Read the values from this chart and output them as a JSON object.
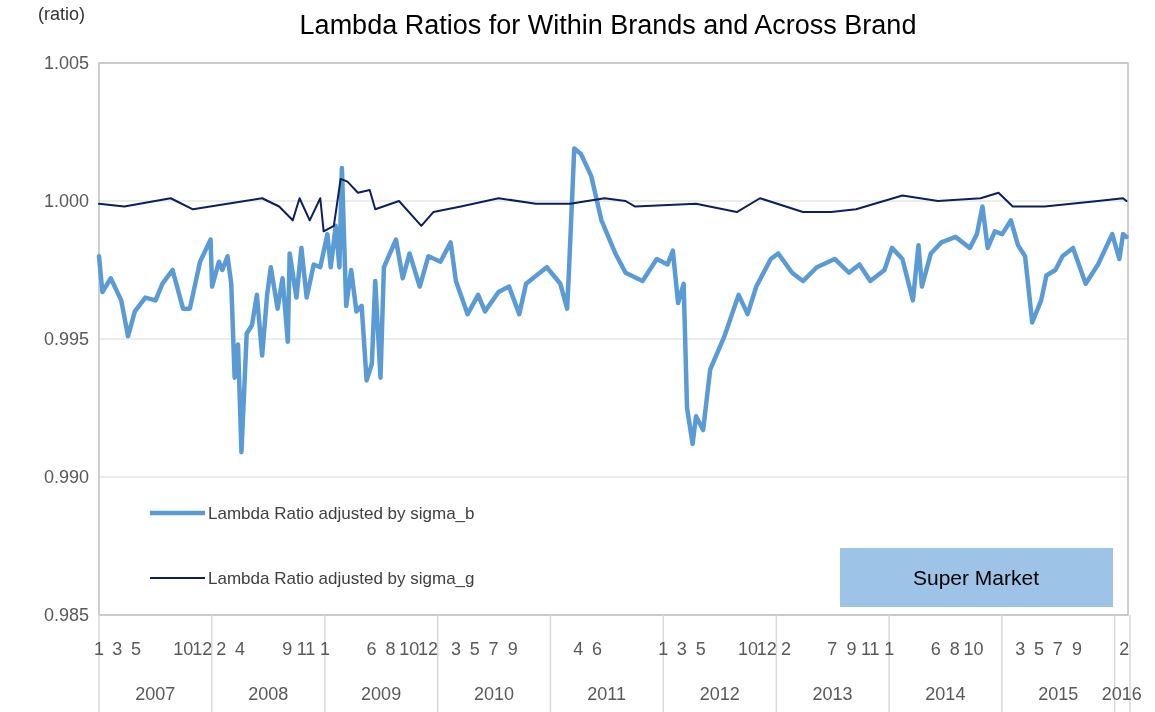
{
  "chart_data": {
    "type": "line",
    "title": "Lambda Ratios for Within Brands and Across Brand",
    "ylabel": "(ratio)",
    "xlim": [
      "2007-01-01",
      "2016-02-13"
    ],
    "xticks": [
      {
        "value": "2007-01",
        "label": "1"
      },
      {
        "value": "2007-03",
        "label": "3"
      },
      {
        "value": "2007-05",
        "label": "5"
      },
      {
        "value": "2007-10",
        "label": "10"
      },
      {
        "value": "2007-12",
        "label": "12"
      },
      {
        "value": "2008-02",
        "label": "2"
      },
      {
        "value": "2008-04",
        "label": "4"
      },
      {
        "value": "2008-09",
        "label": "9"
      },
      {
        "value": "2008-11",
        "label": "11"
      },
      {
        "value": "2009-01",
        "label": "1"
      },
      {
        "value": "2009-06",
        "label": "6"
      },
      {
        "value": "2009-08",
        "label": "8"
      },
      {
        "value": "2009-10",
        "label": "10"
      },
      {
        "value": "2009-12",
        "label": "12"
      },
      {
        "value": "2010-03",
        "label": "3"
      },
      {
        "value": "2010-05",
        "label": "5"
      },
      {
        "value": "2010-07",
        "label": "7"
      },
      {
        "value": "2010-09",
        "label": "9"
      },
      {
        "value": "2011-04",
        "label": "4"
      },
      {
        "value": "2011-06",
        "label": "6"
      },
      {
        "value": "2012-01",
        "label": "1"
      },
      {
        "value": "2012-03",
        "label": "3"
      },
      {
        "value": "2012-05",
        "label": "5"
      },
      {
        "value": "2012-10",
        "label": "10"
      },
      {
        "value": "2012-12",
        "label": "12"
      },
      {
        "value": "2013-02",
        "label": "2"
      },
      {
        "value": "2013-07",
        "label": "7"
      },
      {
        "value": "2013-09",
        "label": "9"
      },
      {
        "value": "2013-11",
        "label": "11"
      },
      {
        "value": "2014-01",
        "label": "1"
      },
      {
        "value": "2014-06",
        "label": "6"
      },
      {
        "value": "2014-08",
        "label": "8"
      },
      {
        "value": "2014-10",
        "label": "10"
      },
      {
        "value": "2015-03",
        "label": "3"
      },
      {
        "value": "2015-05",
        "label": "5"
      },
      {
        "value": "2015-07",
        "label": "7"
      },
      {
        "value": "2015-09",
        "label": "9"
      },
      {
        "value": "2016-02",
        "label": "2"
      }
    ],
    "x2lim": [
      "2007-01-01",
      "2016-02-13"
    ],
    "x2ticks": [
      {
        "value": "2007-07-02",
        "label": "2007"
      },
      {
        "value": "2008-07-02",
        "label": "2008"
      },
      {
        "value": "2009-07-02",
        "label": "2009"
      },
      {
        "value": "2010-07-02",
        "label": "2010"
      },
      {
        "value": "2011-07-02",
        "label": "2011"
      },
      {
        "value": "2012-07-02",
        "label": "2012"
      },
      {
        "value": "2013-07-02",
        "label": "2013"
      },
      {
        "value": "2014-07-02",
        "label": "2014"
      },
      {
        "value": "2015-07-02",
        "label": "2015"
      },
      {
        "value": "2016-01-24",
        "label": "2016"
      }
    ],
    "ylim": [
      0.985,
      1.005
    ],
    "yticks": [
      {
        "value": 0.985,
        "label": "0.985"
      },
      {
        "value": 0.99,
        "label": "0.990"
      },
      {
        "value": 0.995,
        "label": "0.995"
      },
      {
        "value": 1,
        "label": "1.000"
      },
      {
        "value": 1.005,
        "label": "1.005"
      }
    ],
    "grid": "y",
    "legend": "bottom left",
    "marker": "none",
    "line_style": "solid",
    "annotations": [
      "Super Market"
    ],
    "series": [
      {
        "name": "Lambda Ratio adjusted by sigma_b",
        "color": "#5b9bd5",
        "x": [
          "2007-01-01",
          "2007-01-12",
          "2007-02-08",
          "2007-03-14",
          "2007-04-05",
          "2007-04-27",
          "2007-05-31",
          "2007-07-03",
          "2007-07-25",
          "2007-08-27",
          "2007-09-30",
          "2007-10-22",
          "2007-11-24",
          "2007-12-28",
          "2008-01-02",
          "2008-01-24",
          "2008-02-04",
          "2008-02-21",
          "2008-03-04",
          "2008-03-15",
          "2008-03-26",
          "2008-04-06",
          "2008-04-23",
          "2008-05-10",
          "2008-05-26",
          "2008-06-12",
          "2008-06-28",
          "2008-07-10",
          "2008-08-01",
          "2008-08-17",
          "2008-09-03",
          "2008-09-09",
          "2008-10-01",
          "2008-10-17",
          "2008-11-03",
          "2008-11-26",
          "2008-12-17",
          "2009-01-09",
          "2009-01-20",
          "2009-02-05",
          "2009-02-17",
          "2009-02-25",
          "2009-03-11",
          "2009-03-27",
          "2009-04-13",
          "2009-04-30",
          "2009-05-16",
          "2009-06-02",
          "2009-06-13",
          "2009-06-30",
          "2009-07-11",
          "2009-08-19",
          "2009-09-10",
          "2009-10-02",
          "2009-11-04",
          "2009-12-02",
          "2010-01-10",
          "2010-02-12",
          "2010-03-01",
          "2010-04-08",
          "2010-05-12",
          "2010-06-03",
          "2010-07-17",
          "2010-08-20",
          "2010-09-22",
          "2010-10-14",
          "2010-12-20",
          "2011-02-02",
          "2011-02-24",
          "2011-03-02",
          "2011-03-19",
          "2011-04-10",
          "2011-05-13",
          "2011-06-15",
          "2011-07-30",
          "2011-09-01",
          "2011-10-26",
          "2011-12-11",
          "2012-01-15",
          "2012-02-01",
          "2012-02-18",
          "2012-03-07",
          "2012-03-18",
          "2012-04-05",
          "2012-04-16",
          "2012-05-09",
          "2012-06-01",
          "2012-06-24",
          "2012-07-17",
          "2012-09-01",
          "2012-09-30",
          "2012-10-28",
          "2012-12-14",
          "2013-01-07",
          "2013-02-21",
          "2013-03-28",
          "2013-05-12",
          "2013-07-09",
          "2013-08-24",
          "2013-09-27",
          "2013-11-01",
          "2013-12-17",
          "2014-01-10",
          "2014-02-13",
          "2014-03-19",
          "2014-04-06",
          "2014-04-17",
          "2014-05-16",
          "2014-06-19",
          "2014-08-04",
          "2014-09-19",
          "2014-10-12",
          "2014-10-30",
          "2014-11-16",
          "2014-12-09",
          "2015-01-02",
          "2015-01-30",
          "2015-02-22",
          "2015-03-17",
          "2015-04-09",
          "2015-05-08",
          "2015-05-25",
          "2015-06-23",
          "2015-07-16",
          "2015-08-19",
          "2015-09-29",
          "2015-11-08",
          "2015-12-24",
          "2016-01-16",
          "2016-01-28",
          "2016-02-08"
        ],
        "values": [
          0.998,
          0.9967,
          0.9972,
          0.9964,
          0.9951,
          0.996,
          0.9965,
          0.9964,
          0.997,
          0.9975,
          0.9961,
          0.9961,
          0.9978,
          0.9986,
          0.9969,
          0.9978,
          0.9975,
          0.998,
          0.997,
          0.9936,
          0.9948,
          0.9909,
          0.9952,
          0.9955,
          0.9966,
          0.9944,
          0.9966,
          0.9976,
          0.9961,
          0.9972,
          0.9949,
          0.9981,
          0.9965,
          0.9983,
          0.9965,
          0.9977,
          0.9976,
          0.9988,
          0.9976,
          0.9991,
          0.9976,
          1.0012,
          0.9962,
          0.9975,
          0.996,
          0.9962,
          0.9935,
          0.9941,
          0.9971,
          0.9936,
          0.9976,
          0.9986,
          0.9972,
          0.9981,
          0.9969,
          0.998,
          0.9978,
          0.9985,
          0.9971,
          0.9959,
          0.9966,
          0.996,
          0.9967,
          0.9969,
          0.9959,
          0.997,
          0.9976,
          0.997,
          0.9961,
          0.9975,
          1.0019,
          1.0017,
          1.0009,
          0.9993,
          0.9981,
          0.9974,
          0.9971,
          0.9979,
          0.9977,
          0.9982,
          0.9963,
          0.997,
          0.9925,
          0.9912,
          0.9922,
          0.9917,
          0.9939,
          0.9945,
          0.9951,
          0.9966,
          0.9959,
          0.9969,
          0.9979,
          0.9981,
          0.9974,
          0.9971,
          0.9976,
          0.9979,
          0.9974,
          0.9977,
          0.9971,
          0.9975,
          0.9983,
          0.9979,
          0.9964,
          0.9984,
          0.9969,
          0.9981,
          0.9985,
          0.9987,
          0.9983,
          0.9988,
          0.9998,
          0.9983,
          0.9989,
          0.9988,
          0.9993,
          0.9984,
          0.998,
          0.9956,
          0.9964,
          0.9973,
          0.9975,
          0.998,
          0.9983,
          0.997,
          0.9977,
          0.9988,
          0.9979,
          0.9988,
          0.9987
        ]
      },
      {
        "name": "Lambda Ratio adjusted by sigma_g",
        "color": "#0d1f5c",
        "x": [
          "2007-01-01",
          "2007-03-24",
          "2007-08-21",
          "2007-11-01",
          "2008-02-21",
          "2008-06-12",
          "2008-08-06",
          "2008-09-19",
          "2008-10-11",
          "2008-11-13",
          "2008-12-17",
          "2008-12-28",
          "2009-01-30",
          "2009-02-21",
          "2009-03-15",
          "2009-04-18",
          "2009-05-26",
          "2009-06-13",
          "2009-08-29",
          "2009-11-09",
          "2009-12-18",
          "2010-03-17",
          "2010-07-17",
          "2010-11-15",
          "2011-03-06",
          "2011-06-25",
          "2011-09-01",
          "2011-10-02",
          "2012-04-16",
          "2012-08-26",
          "2012-11-09",
          "2013-03-28",
          "2013-06-27",
          "2013-09-16",
          "2014-02-13",
          "2014-06-08",
          "2014-10-24",
          "2014-12-21",
          "2015-02-05",
          "2015-05-19",
          "2015-11-08",
          "2016-01-28",
          "2016-02-08"
        ],
        "values": [
          0.9999,
          0.9998,
          1.0001,
          0.9997,
          0.9999,
          1.0001,
          0.9998,
          0.9993,
          1.0001,
          0.9993,
          1.0001,
          0.9989,
          0.9991,
          1.0008,
          1.0007,
          1.0003,
          1.0004,
          0.9997,
          1,
          0.9991,
          0.9996,
          0.9998,
          1.0001,
          0.9999,
          0.9999,
          1.0001,
          1,
          0.9998,
          0.9999,
          0.9996,
          1.0001,
          0.9996,
          0.9996,
          0.9997,
          1.0002,
          1,
          1.0001,
          1.0003,
          0.9998,
          0.9998,
          1,
          1.0001,
          1
        ]
      }
    ]
  }
}
